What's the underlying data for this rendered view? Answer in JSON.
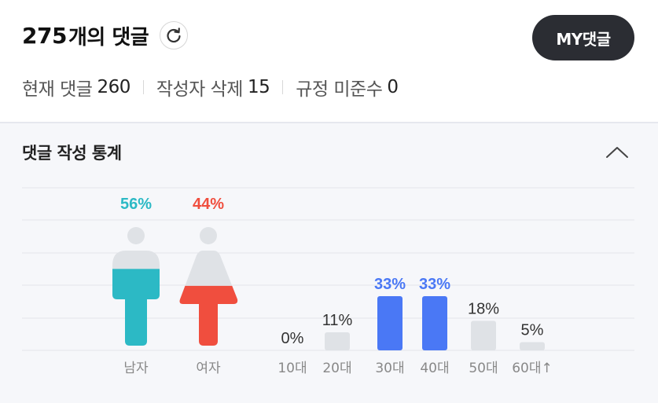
{
  "header": {
    "count": "275",
    "title_suffix": "개의 댓글",
    "my_button": "MY댓글",
    "stats": [
      {
        "label": "현재 댓글",
        "value": "260"
      },
      {
        "label": "작성자 삭제",
        "value": "15"
      },
      {
        "label": "규정 미준수",
        "value": "0"
      }
    ]
  },
  "panel": {
    "title": "댓글 작성 통계"
  },
  "colors": {
    "male": "#2cb9c5",
    "female": "#f04e3e",
    "highlight": "#4a78f5",
    "bar": "#dfe2e6",
    "figure_bg": "#dfe2e6"
  },
  "icons": [
    "refresh-icon",
    "chevron-up-icon"
  ],
  "chart_data": [
    {
      "type": "bar",
      "categories": [
        "남자",
        "여자"
      ],
      "values": [
        56,
        44
      ],
      "value_labels": [
        "56%",
        "44%"
      ]
    },
    {
      "type": "bar",
      "categories": [
        "10대",
        "20대",
        "30대",
        "40대",
        "50대",
        "60대↑"
      ],
      "values": [
        0,
        11,
        33,
        33,
        18,
        5
      ],
      "value_labels": [
        "0%",
        "11%",
        "33%",
        "33%",
        "18%",
        "5%"
      ],
      "highlighted": [
        "30대",
        "40대"
      ]
    }
  ]
}
